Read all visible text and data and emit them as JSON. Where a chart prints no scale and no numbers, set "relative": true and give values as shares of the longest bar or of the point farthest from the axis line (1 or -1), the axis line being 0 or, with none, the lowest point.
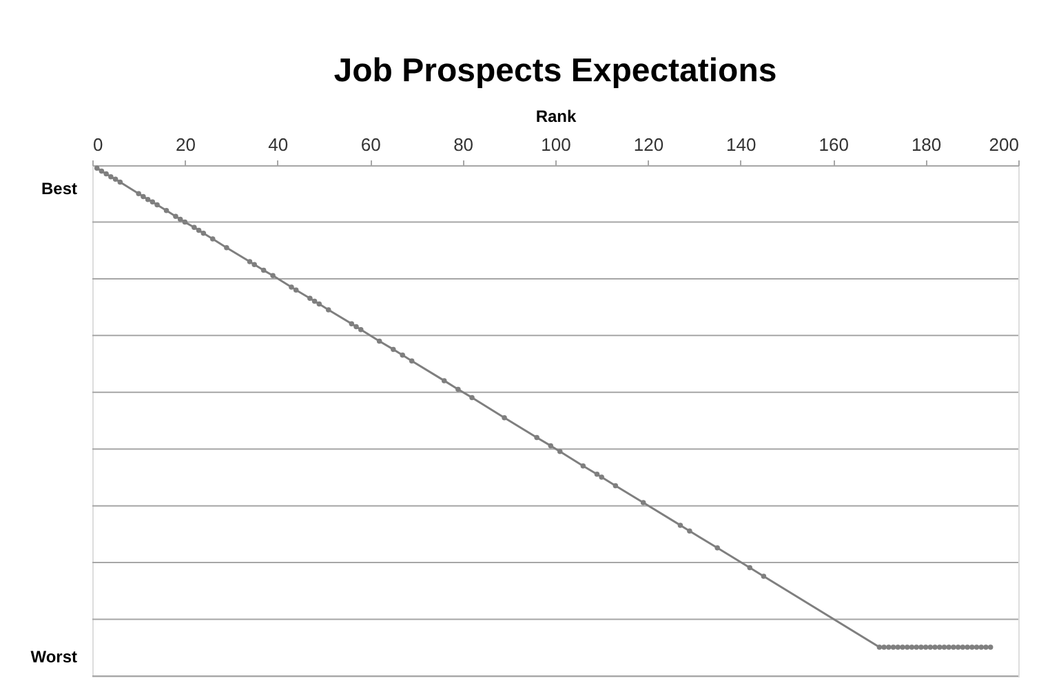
{
  "chart_data": {
    "type": "line",
    "title": "Job Prospects Expectations",
    "xlabel": "Rank",
    "annotations": [
      "Best",
      "Worst"
    ],
    "x": [
      1,
      2,
      3,
      4,
      5,
      6,
      10,
      11,
      12,
      13,
      14,
      16,
      18,
      19,
      20,
      22,
      23,
      24,
      26,
      29,
      34,
      35,
      37,
      39,
      43,
      44,
      47,
      48,
      49,
      51,
      56,
      57,
      58,
      62,
      65,
      67,
      69,
      76,
      79,
      82,
      89,
      96,
      99,
      101,
      106,
      109,
      110,
      113,
      119,
      127,
      129,
      135,
      142,
      145,
      170,
      171,
      172,
      173,
      174,
      175,
      176,
      177,
      178,
      179,
      180,
      181,
      182,
      183,
      184,
      185,
      186,
      187,
      188,
      189,
      190,
      191,
      192,
      193,
      194
    ],
    "series": [
      {
        "color": "#7f7f7f",
        "values": [
          -0.006,
          -0.012,
          -0.018,
          -0.024,
          -0.029,
          -0.035,
          -0.059,
          -0.065,
          -0.071,
          -0.076,
          -0.082,
          -0.094,
          -0.106,
          -0.112,
          -0.118,
          -0.129,
          -0.135,
          -0.141,
          -0.153,
          -0.171,
          -0.2,
          -0.206,
          -0.218,
          -0.229,
          -0.253,
          -0.259,
          -0.276,
          -0.282,
          -0.288,
          -0.3,
          -0.329,
          -0.335,
          -0.341,
          -0.365,
          -0.382,
          -0.394,
          -0.406,
          -0.447,
          -0.465,
          -0.482,
          -0.524,
          -0.565,
          -0.582,
          -0.594,
          -0.624,
          -0.641,
          -0.647,
          -0.665,
          -0.7,
          -0.747,
          -0.759,
          -0.794,
          -0.835,
          -0.853,
          -1,
          -1,
          -1,
          -1,
          -1,
          -1,
          -1,
          -1,
          -1,
          -1,
          -1,
          -1,
          -1,
          -1,
          -1,
          -1,
          -1,
          -1,
          -1,
          -1,
          -1,
          -1,
          -1,
          -1,
          -1
        ]
      }
    ],
    "relative": true,
    "xlim": [
      0,
      200
    ],
    "xticks": [
      0,
      20,
      40,
      60,
      80,
      100,
      120,
      140,
      160,
      180,
      200
    ],
    "grid": "y",
    "marker": "circle",
    "line_style": "solid"
  }
}
